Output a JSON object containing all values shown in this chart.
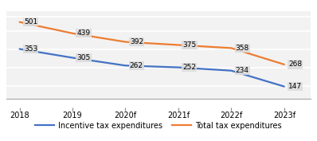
{
  "categories": [
    "2018",
    "2019",
    "2020f",
    "2021f",
    "2022f",
    "2023f"
  ],
  "incentive_values": [
    353,
    305,
    262,
    252,
    234,
    147
  ],
  "total_values": [
    501,
    439,
    392,
    375,
    358,
    268
  ],
  "incentive_color": "#4472C4",
  "total_color": "#ED7D31",
  "incentive_label": "Incentive tax expenditures",
  "total_label": "Total tax expenditures",
  "ylim": [
    80,
    560
  ],
  "annotation_fontsize": 6.5,
  "label_fontsize": 7.0,
  "tick_fontsize": 7.0,
  "bg_color": "#F2F2F2",
  "plot_bg_color": "#F2F2F2",
  "outer_bg_color": "#FFFFFF",
  "annotation_box_color": "#DCDCDC",
  "line_width": 1.6,
  "grid_color": "#FFFFFF",
  "grid_linewidth": 1.2,
  "grid_yticks": [
    150,
    250,
    350,
    450,
    530
  ]
}
